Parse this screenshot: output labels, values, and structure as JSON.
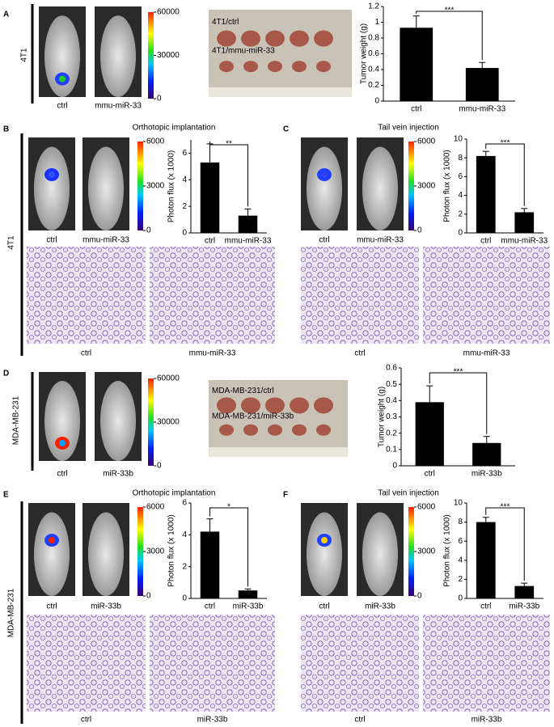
{
  "chart_data": [
    {
      "type": "bar",
      "ylabel": "Tumor weight (g)",
      "categories": [
        "ctrl",
        "mmu-miR-33"
      ],
      "values": [
        0.93,
        0.42
      ],
      "errors": [
        0.15,
        0.07
      ],
      "color": "#000000",
      "ylim": [
        0,
        1.2
      ],
      "yticks": [
        0,
        0.2,
        0.4,
        0.6,
        0.8,
        1,
        1.2
      ],
      "significance": "***"
    },
    {
      "type": "bar",
      "ylabel": "Photon flux (x 1000)",
      "categories": [
        "ctrl",
        "mmu-miR-33"
      ],
      "values": [
        5.3,
        1.3
      ],
      "errors": [
        1.4,
        0.5
      ],
      "color": "#000000",
      "ylim": [
        0,
        7
      ],
      "yticks": [
        0,
        2,
        4,
        6
      ],
      "significance": "**"
    },
    {
      "type": "bar",
      "ylabel": "Photon flux (x 1000)",
      "categories": [
        "ctrl",
        "mmu-miR-33"
      ],
      "values": [
        8.2,
        2.2
      ],
      "errors": [
        0.5,
        0.4
      ],
      "color": "#000000",
      "ylim": [
        0,
        10
      ],
      "yticks": [
        0,
        2,
        4,
        6,
        8,
        10
      ],
      "significance": "***"
    },
    {
      "type": "bar",
      "ylabel": "Tumor weight (g)",
      "categories": [
        "ctrl",
        "miR-33b"
      ],
      "values": [
        0.39,
        0.14
      ],
      "errors": [
        0.1,
        0.04
      ],
      "color": "#000000",
      "ylim": [
        0,
        0.6
      ],
      "yticks": [
        0,
        0.1,
        0.2,
        0.3,
        0.4,
        0.5,
        0.6
      ],
      "significance": "***"
    },
    {
      "type": "bar",
      "ylabel": "Photon flux (x 1000)",
      "categories": [
        "ctrl",
        "miR-33b"
      ],
      "values": [
        4.2,
        0.5
      ],
      "errors": [
        0.8,
        0.1
      ],
      "color": "#000000",
      "ylim": [
        0,
        6
      ],
      "yticks": [
        0,
        2,
        4,
        6
      ],
      "significance": "*"
    },
    {
      "type": "bar",
      "ylabel": "Photon flux (x 1000)",
      "categories": [
        "ctrl",
        "miR-33b"
      ],
      "values": [
        8.0,
        1.3
      ],
      "errors": [
        0.5,
        0.3
      ],
      "color": "#000000",
      "ylim": [
        0,
        10
      ],
      "yticks": [
        0,
        2,
        4,
        6,
        8,
        10
      ],
      "significance": "***"
    }
  ],
  "panels": [
    {
      "letter": "A",
      "mouse_labels": [
        "ctrl",
        "mmu-miR-33"
      ],
      "colorbar_ticks": [
        0,
        30000,
        60000
      ],
      "photo_labels": [
        "4T1/ctrl",
        "4T1/mmu-miR-33"
      ]
    },
    {
      "letter": "B",
      "title": "Orthotopic implantation",
      "mouse_labels": [
        "ctrl",
        "mmu-miR-33"
      ],
      "colorbar_ticks": [
        0,
        3000,
        6000
      ],
      "histology_labels": [
        "ctrl",
        "mmu-miR-33"
      ]
    },
    {
      "letter": "C",
      "title": "Tail vein injection",
      "mouse_labels": [
        "ctrl",
        "mmu-miR-33"
      ],
      "colorbar_ticks": [
        0,
        3000,
        6000
      ],
      "histology_labels": [
        "ctrl",
        "mmu-miR-33"
      ]
    },
    {
      "letter": "D",
      "mouse_labels": [
        "ctrl",
        "miR-33b"
      ],
      "colorbar_ticks": [
        0,
        30000,
        60000
      ],
      "photo_labels": [
        "MDA-MB-231/ctrl",
        "MDA-MB-231/miR-33b"
      ]
    },
    {
      "letter": "E",
      "title": "Orthotopic implantation",
      "mouse_labels": [
        "ctrl",
        "miR-33b"
      ],
      "colorbar_ticks": [
        0,
        3000,
        6000
      ],
      "histology_labels": [
        "ctrl",
        "miR-33b"
      ]
    },
    {
      "letter": "F",
      "title": "Tail vein injection",
      "mouse_labels": [
        "ctrl",
        "miR-33b"
      ],
      "colorbar_ticks": [
        0,
        3000,
        6000
      ],
      "histology_labels": [
        "ctrl",
        "miR-33b"
      ]
    }
  ],
  "side_labels": [
    "4T1",
    "4T1",
    "MDA-MB-231",
    "MDA-MB-231"
  ]
}
